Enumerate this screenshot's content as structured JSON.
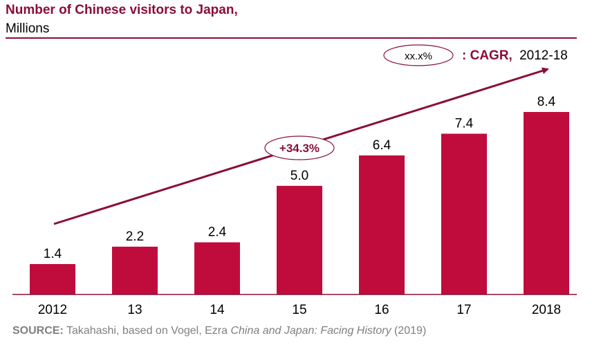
{
  "title": "Number of Chinese visitors to Japan,",
  "subtitle": "Millions",
  "legend": {
    "marker_text": "xx.x%",
    "label": ": CAGR,",
    "period": "2012-18"
  },
  "cagr_callout": "+34.3%",
  "source": {
    "label": "SOURCE:",
    "text_before": "Takahashi, based on Vogel, Ezra",
    "italic": "China and Japan: Facing History",
    "text_after": "(2019)"
  },
  "colors": {
    "bar": "#c00c3c",
    "accent": "#8b0d37",
    "axis": "#8b0d37"
  },
  "chart_data": {
    "type": "bar",
    "title": "Number of Chinese visitors to Japan,",
    "subtitle": "Millions",
    "categories": [
      "2012",
      "13",
      "14",
      "15",
      "16",
      "17",
      "2018"
    ],
    "values": [
      1.4,
      2.2,
      2.4,
      5.0,
      6.4,
      7.4,
      8.4
    ],
    "value_labels": [
      "1.4",
      "2.2",
      "2.4",
      "5.0",
      "6.4",
      "7.4",
      "8.4"
    ],
    "ylim": [
      0,
      8.4
    ],
    "grid": false,
    "annotations": [
      {
        "type": "trend-arrow",
        "from": "2012",
        "to": "2018",
        "label": "+34.3%",
        "meaning": "CAGR, 2012-18"
      }
    ]
  }
}
